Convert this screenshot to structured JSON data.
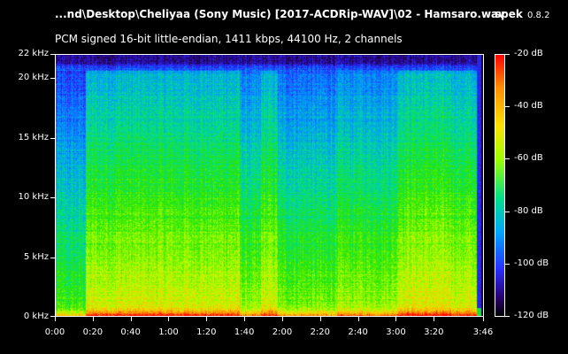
{
  "window": {
    "title": "...nd\\Desktop\\Cheliyaa (Sony Music) [2017-ACDRip-WAV]\\02 - Hamsaro.wav",
    "app_name": "spek",
    "app_version": "0.8.2",
    "info": "PCM signed 16-bit little-endian, 1411 kbps, 44100 Hz, 2 channels"
  },
  "chart_data": {
    "type": "heatmap",
    "title": "",
    "y_axis": {
      "ticks": [
        "0 kHz",
        "5 kHz",
        "10 kHz",
        "15 kHz",
        "20 kHz",
        "22 kHz"
      ],
      "values": [
        0,
        5,
        10,
        15,
        20,
        22
      ],
      "range": [
        0,
        22
      ]
    },
    "x_axis": {
      "ticks": [
        "0:00",
        "0:20",
        "0:40",
        "1:00",
        "1:20",
        "1:40",
        "2:00",
        "2:20",
        "2:40",
        "3:00",
        "3:20",
        "3:46"
      ],
      "values_seconds": [
        0,
        20,
        40,
        60,
        80,
        100,
        120,
        140,
        160,
        180,
        200,
        226
      ],
      "range_seconds": [
        0,
        226
      ]
    },
    "colorbar": {
      "ticks": [
        "-20 dB",
        "-40 dB",
        "-60 dB",
        "-80 dB",
        "-100 dB",
        "-120 dB"
      ],
      "values": [
        -20,
        -40,
        -60,
        -80,
        -100,
        -120
      ],
      "range": [
        -120,
        -20
      ]
    },
    "colors": {
      "low": "#000000",
      "mid_low": "#2a00ff",
      "mid": "#00d060",
      "mid_high": "#c8ff00",
      "high": "#ff0000"
    },
    "grid": false
  }
}
